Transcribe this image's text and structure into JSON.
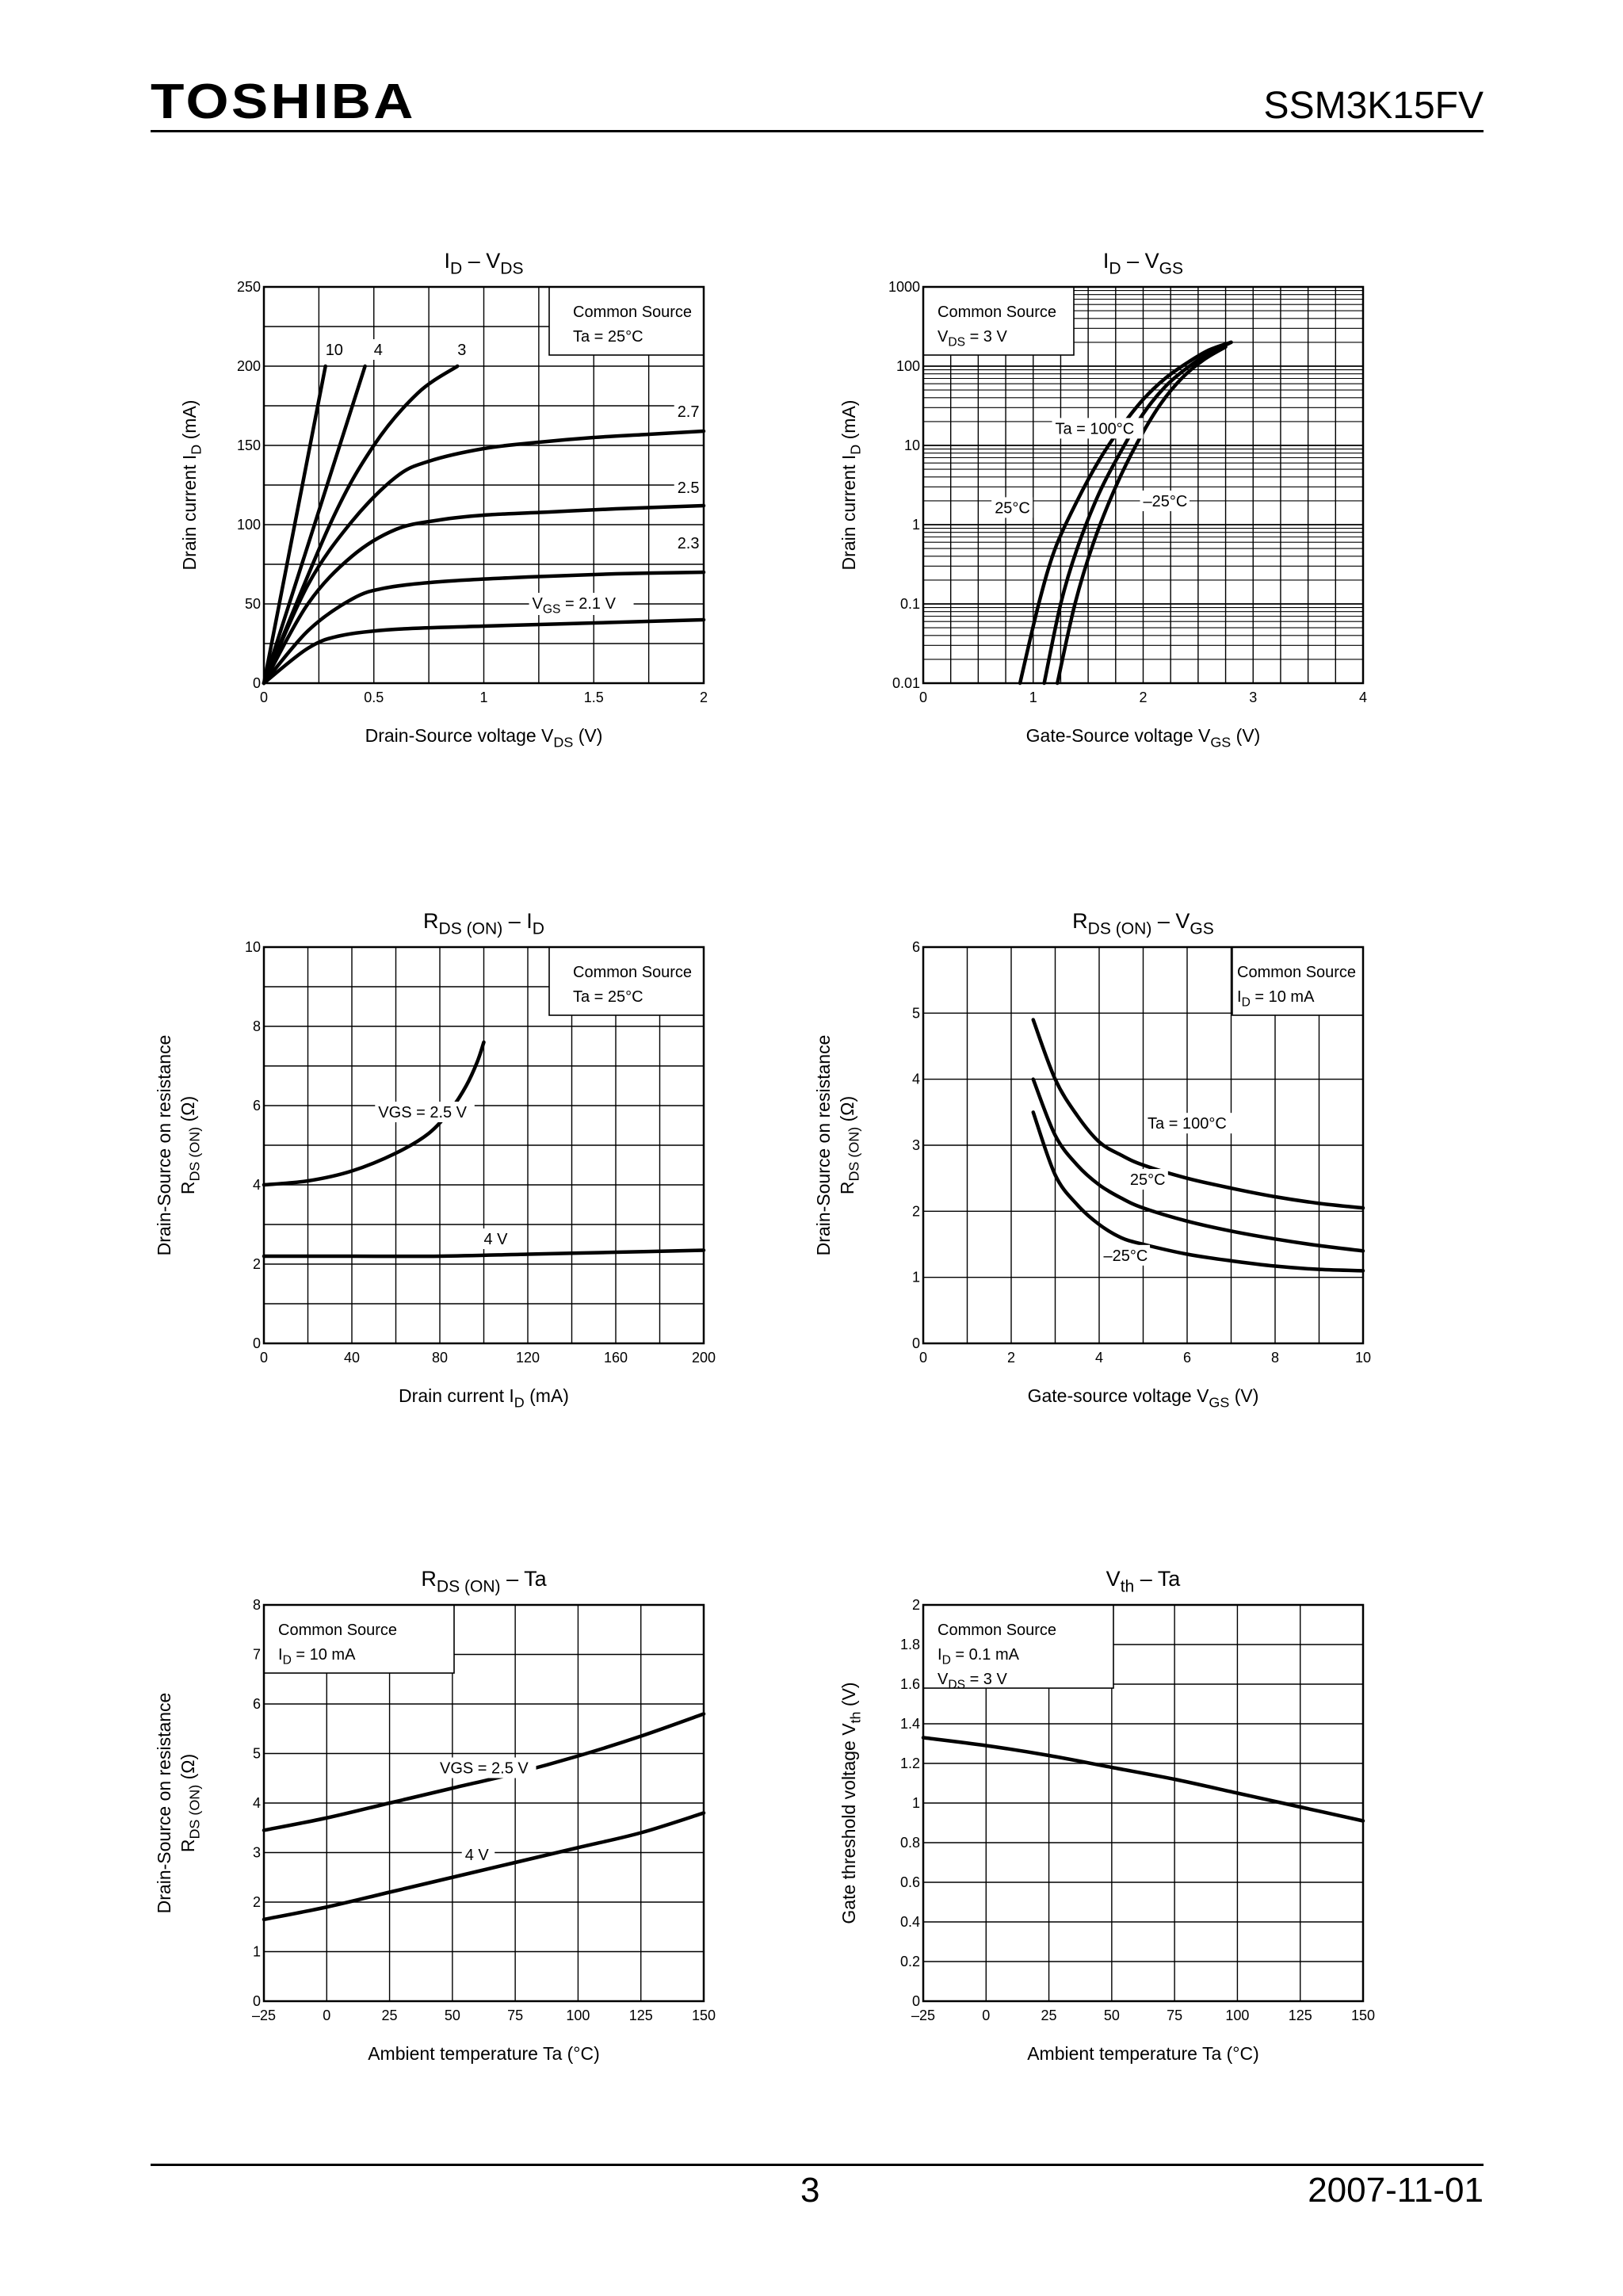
{
  "header": {
    "logo": "TOSHIBA",
    "part_number": "SSM3K15FV"
  },
  "footer": {
    "page_number": "3",
    "date": "2007-11-01"
  },
  "chart_data": [
    {
      "id": "id_vds",
      "type": "line",
      "yscale": "linear",
      "title_main": "I",
      "title_sub": "D",
      "title_dash": " – ",
      "title_main2": "V",
      "title_sub2": "DS",
      "title_tail": "",
      "xlabel": "Drain-Source voltage",
      "xlabel_sym": "V",
      "xlabel_sub": "DS",
      "xlabel_unit": "(V)",
      "ylabel": "Drain current",
      "ylabel_sym": "I",
      "ylabel_sub": "D",
      "ylabel_unit": "(mA)",
      "xlim": [
        0,
        2
      ],
      "ylim": [
        0,
        250
      ],
      "xticks": [
        "0",
        "0.5",
        "1",
        "1.5",
        "2"
      ],
      "xtick_values": [
        0,
        0.5,
        1,
        1.5,
        2
      ],
      "yticks": [
        "0",
        "50",
        "100",
        "150",
        "200",
        "250"
      ],
      "ytick_values": [
        0,
        50,
        100,
        150,
        200,
        250
      ],
      "xgrid": 8,
      "ygrid": 10,
      "legend_lines": [
        "Common Source",
        "Ta = 25°C"
      ],
      "series": [
        {
          "name": "10",
          "x": [
            0,
            0.28
          ],
          "y": [
            0,
            200
          ]
        },
        {
          "name": "4",
          "x": [
            0,
            0.46
          ],
          "y": [
            0,
            200
          ]
        },
        {
          "name": "3",
          "x": [
            0,
            0.3,
            0.5,
            0.7,
            0.88
          ],
          "y": [
            0,
            100,
            150,
            183,
            200
          ]
        },
        {
          "name": "2.7",
          "x": [
            0,
            0.2,
            0.4,
            0.6,
            0.75,
            1.0,
            1.25,
            1.5,
            1.75,
            2.0
          ],
          "y": [
            0,
            62,
            102,
            130,
            140,
            148,
            152,
            155,
            157,
            159
          ]
        },
        {
          "name": "2.5",
          "x": [
            0,
            0.2,
            0.4,
            0.6,
            0.8,
            1.0,
            1.3,
            1.6,
            2.0
          ],
          "y": [
            0,
            50,
            80,
            97,
            103,
            106,
            108,
            110,
            112
          ]
        },
        {
          "name": "2.3",
          "x": [
            0,
            0.2,
            0.4,
            0.55,
            0.8,
            1.2,
            1.6,
            2.0
          ],
          "y": [
            0,
            33,
            53,
            60,
            64,
            67,
            69,
            70
          ]
        },
        {
          "name": "VGS = 2.1 V",
          "x": [
            0,
            0.2,
            0.35,
            0.6,
            1.0,
            1.5,
            2.0
          ],
          "y": [
            0,
            22,
            30,
            34,
            36,
            38,
            40
          ]
        }
      ],
      "annotations": [
        {
          "text": "10",
          "x": 0.28,
          "y": 207
        },
        {
          "text": "4",
          "x": 0.5,
          "y": 207
        },
        {
          "text": "3",
          "x": 0.88,
          "y": 207
        },
        {
          "text": "2.7",
          "x": 1.88,
          "y": 168
        },
        {
          "text": "2.5",
          "x": 1.88,
          "y": 120
        },
        {
          "text": "2.3",
          "x": 1.88,
          "y": 85
        }
      ],
      "label_vgs": "V",
      "label_vgs_sub": "GS",
      "label_vgs_tail": " = 2.1 V"
    },
    {
      "id": "id_vgs",
      "type": "line",
      "yscale": "log",
      "title_main": "I",
      "title_sub": "D",
      "title_dash": " – ",
      "title_main2": "V",
      "title_sub2": "GS",
      "title_tail": "",
      "xlabel": "Gate-Source voltage",
      "xlabel_sym": "V",
      "xlabel_sub": "GS",
      "xlabel_unit": "(V)",
      "ylabel": "Drain current",
      "ylabel_sym": "I",
      "ylabel_sub": "D",
      "ylabel_unit": "(mA)",
      "xlim": [
        0,
        4
      ],
      "ylim": [
        0.01,
        1000
      ],
      "xticks": [
        "0",
        "1",
        "2",
        "3",
        "4"
      ],
      "xtick_values": [
        0,
        1,
        2,
        3,
        4
      ],
      "yticks": [
        "0.01",
        "0.1",
        "1",
        "10",
        "100",
        "1000"
      ],
      "ytick_values": [
        0.01,
        0.1,
        1,
        10,
        100,
        1000
      ],
      "xgrid": 16,
      "ygrid": 5,
      "legend_lines": [
        "Common Source",
        "V|DS| = 3 V"
      ],
      "series": [
        {
          "name": "Ta = 100°C",
          "x": [
            0.88,
            1.05,
            1.2,
            1.4,
            1.6,
            1.8,
            2.0,
            2.2,
            2.4,
            2.6,
            2.8
          ],
          "y": [
            0.01,
            0.1,
            0.5,
            2,
            6.5,
            17,
            38,
            70,
            110,
            160,
            200
          ]
        },
        {
          "name": "25°C",
          "x": [
            1.1,
            1.25,
            1.4,
            1.6,
            1.8,
            2.0,
            2.2,
            2.4,
            2.6,
            2.8
          ],
          "y": [
            0.01,
            0.1,
            0.5,
            2.5,
            8.5,
            25,
            55,
            95,
            145,
            200
          ]
        },
        {
          "name": "-25°C",
          "x": [
            1.22,
            1.38,
            1.55,
            1.75,
            1.95,
            2.15,
            2.35,
            2.55,
            2.75
          ],
          "y": [
            0.01,
            0.1,
            0.6,
            3,
            11,
            32,
            70,
            120,
            175
          ]
        }
      ],
      "annotations": [
        {
          "text": "Ta = 100°C",
          "x": 1.2,
          "y": 14
        },
        {
          "text": "25°C",
          "x": 0.65,
          "y": 1.4
        },
        {
          "text": "–25°C",
          "x": 2.0,
          "y": 1.7
        }
      ]
    },
    {
      "id": "rds_id",
      "type": "line",
      "yscale": "linear",
      "title_main": "R",
      "title_sub": "DS (ON)",
      "title_dash": " – ",
      "title_main2": "I",
      "title_sub2": "D",
      "title_tail": "",
      "xlabel": "Drain current",
      "xlabel_sym": "I",
      "xlabel_sub": "D",
      "xlabel_unit": "(mA)",
      "ylabel": "Drain-Source on resistance",
      "ylabel_sym": "R",
      "ylabel_sub": "DS (ON)",
      "ylabel_unit": "(Ω)",
      "xlim": [
        0,
        200
      ],
      "ylim": [
        0,
        10
      ],
      "xticks": [
        "0",
        "40",
        "80",
        "120",
        "160",
        "200"
      ],
      "xtick_values": [
        0,
        40,
        80,
        120,
        160,
        200
      ],
      "yticks": [
        "0",
        "2",
        "4",
        "6",
        "8",
        "10"
      ],
      "ytick_values": [
        0,
        2,
        4,
        6,
        8,
        10
      ],
      "xgrid": 10,
      "ygrid": 10,
      "legend_lines": [
        "Common Source",
        "Ta = 25°C"
      ],
      "series": [
        {
          "name": "VGS = 2.5 V",
          "x": [
            0,
            20,
            40,
            60,
            75,
            85,
            92,
            97,
            100
          ],
          "y": [
            4.0,
            4.1,
            4.35,
            4.8,
            5.3,
            5.9,
            6.5,
            7.1,
            7.6
          ]
        },
        {
          "name": "4 V",
          "x": [
            0,
            40,
            80,
            120,
            160,
            200
          ],
          "y": [
            2.2,
            2.2,
            2.2,
            2.25,
            2.3,
            2.35
          ]
        }
      ],
      "annotations": [
        {
          "text": "VGS = 2.5 V",
          "x": 52,
          "y": 5.7
        },
        {
          "text": "4 V",
          "x": 100,
          "y": 2.5
        }
      ]
    },
    {
      "id": "rds_vgs",
      "type": "line",
      "yscale": "linear",
      "title_main": "R",
      "title_sub": "DS (ON)",
      "title_dash": " – ",
      "title_main2": "V",
      "title_sub2": "GS",
      "title_tail": "",
      "xlabel": "Gate-source voltage",
      "xlabel_sym": "V",
      "xlabel_sub": "GS",
      "xlabel_unit": "(V)",
      "ylabel": "Drain-Source on resistance",
      "ylabel_sym": "R",
      "ylabel_sub": "DS (ON)",
      "ylabel_unit": "(Ω)",
      "xlim": [
        0,
        10
      ],
      "ylim": [
        0,
        6
      ],
      "xticks": [
        "0",
        "2",
        "4",
        "6",
        "8",
        "10"
      ],
      "xtick_values": [
        0,
        2,
        4,
        6,
        8,
        10
      ],
      "yticks": [
        "0",
        "1",
        "2",
        "3",
        "4",
        "5",
        "6"
      ],
      "ytick_values": [
        0,
        1,
        2,
        3,
        4,
        5,
        6
      ],
      "xgrid": 10,
      "ygrid": 6,
      "legend_lines": [
        "Common Source",
        "I|D| = 10 mA"
      ],
      "series": [
        {
          "name": "Ta = 100°C",
          "x": [
            2.5,
            3.0,
            3.5,
            4.0,
            4.5,
            5,
            6,
            7,
            8,
            9,
            10
          ],
          "y": [
            4.9,
            4.0,
            3.45,
            3.05,
            2.85,
            2.7,
            2.5,
            2.35,
            2.22,
            2.12,
            2.05
          ]
        },
        {
          "name": "25°C",
          "x": [
            2.5,
            3.0,
            3.5,
            4.0,
            4.5,
            5,
            6,
            7,
            8,
            9,
            10
          ],
          "y": [
            4.0,
            3.15,
            2.7,
            2.4,
            2.2,
            2.05,
            1.85,
            1.7,
            1.58,
            1.48,
            1.4
          ]
        },
        {
          "name": "-25°C",
          "x": [
            2.5,
            3.0,
            3.5,
            4.0,
            4.5,
            5,
            6,
            7,
            8,
            9,
            10
          ],
          "y": [
            3.5,
            2.55,
            2.1,
            1.8,
            1.6,
            1.5,
            1.35,
            1.25,
            1.17,
            1.12,
            1.1
          ]
        }
      ],
      "annotations": [
        {
          "text": "Ta = 100°C",
          "x": 5.1,
          "y": 3.25
        },
        {
          "text": "25°C",
          "x": 4.7,
          "y": 2.4
        },
        {
          "text": "–25°C",
          "x": 4.1,
          "y": 1.25
        }
      ]
    },
    {
      "id": "rds_ta",
      "type": "line",
      "yscale": "linear",
      "title_main": "R",
      "title_sub": "DS (ON)",
      "title_dash": " – ",
      "title_main2": "Ta",
      "title_sub2": "",
      "title_tail": "",
      "xlabel": "Ambient temperature",
      "xlabel_sym": "Ta",
      "xlabel_sub": "",
      "xlabel_unit": "(°C)",
      "ylabel": "Drain-Source on resistance",
      "ylabel_sym": "R",
      "ylabel_sub": "DS (ON)",
      "ylabel_unit": "(Ω)",
      "xlim": [
        -25,
        150
      ],
      "ylim": [
        0,
        8
      ],
      "xticks": [
        "–25",
        "0",
        "25",
        "50",
        "75",
        "100",
        "125",
        "150"
      ],
      "xtick_values": [
        -25,
        0,
        25,
        50,
        75,
        100,
        125,
        150
      ],
      "yticks": [
        "0",
        "1",
        "2",
        "3",
        "4",
        "5",
        "6",
        "7",
        "8"
      ],
      "ytick_values": [
        0,
        1,
        2,
        3,
        4,
        5,
        6,
        7,
        8
      ],
      "xgrid": 7,
      "ygrid": 8,
      "legend_lines": [
        "Common Source",
        "I|D| = 10 mA"
      ],
      "series": [
        {
          "name": "VGS = 2.5 V",
          "x": [
            -25,
            0,
            25,
            50,
            75,
            100,
            125,
            150
          ],
          "y": [
            3.45,
            3.7,
            4.0,
            4.3,
            4.6,
            4.95,
            5.35,
            5.8
          ]
        },
        {
          "name": "4 V",
          "x": [
            -25,
            0,
            25,
            50,
            75,
            100,
            125,
            150
          ],
          "y": [
            1.65,
            1.9,
            2.2,
            2.5,
            2.8,
            3.1,
            3.4,
            3.8
          ]
        }
      ],
      "annotations": [
        {
          "text": "VGS = 2.5 V",
          "x": 45,
          "y": 4.6
        },
        {
          "text": "4 V",
          "x": 55,
          "y": 2.85
        }
      ]
    },
    {
      "id": "vth_ta",
      "type": "line",
      "yscale": "linear",
      "title_main": "V",
      "title_sub": "th",
      "title_dash": " – ",
      "title_main2": "Ta",
      "title_sub2": "",
      "title_tail": "",
      "xlabel": "Ambient temperature",
      "xlabel_sym": "Ta",
      "xlabel_sub": "",
      "xlabel_unit": "(°C)",
      "ylabel": "Gate threshold voltage",
      "ylabel_sym": "V",
      "ylabel_sub": "th",
      "ylabel_unit": "(V)",
      "xlim": [
        -25,
        150
      ],
      "ylim": [
        0,
        2
      ],
      "xticks": [
        "–25",
        "0",
        "25",
        "50",
        "75",
        "100",
        "125",
        "150"
      ],
      "xtick_values": [
        -25,
        0,
        25,
        50,
        75,
        100,
        125,
        150
      ],
      "yticks": [
        "0",
        "0.2",
        "0.4",
        "0.6",
        "0.8",
        "1",
        "1.2",
        "1.4",
        "1.6",
        "1.8",
        "2"
      ],
      "ytick_values": [
        0,
        0.2,
        0.4,
        0.6,
        0.8,
        1,
        1.2,
        1.4,
        1.6,
        1.8,
        2
      ],
      "xgrid": 7,
      "ygrid": 10,
      "legend_lines": [
        "Common Source",
        "I|D| = 0.1 mA",
        "V|DS| = 3 V"
      ],
      "series": [
        {
          "name": "Vth",
          "x": [
            -25,
            0,
            25,
            50,
            75,
            100,
            125,
            150
          ],
          "y": [
            1.33,
            1.29,
            1.24,
            1.18,
            1.12,
            1.05,
            0.98,
            0.91
          ]
        }
      ],
      "annotations": []
    }
  ]
}
